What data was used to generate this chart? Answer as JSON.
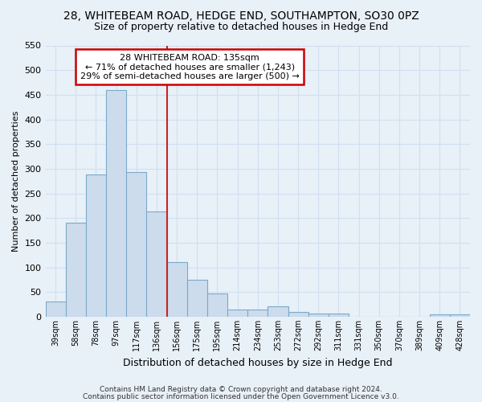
{
  "title1": "28, WHITEBEAM ROAD, HEDGE END, SOUTHAMPTON, SO30 0PZ",
  "title2": "Size of property relative to detached houses in Hedge End",
  "xlabel": "Distribution of detached houses by size in Hedge End",
  "ylabel": "Number of detached properties",
  "categories": [
    "39sqm",
    "58sqm",
    "78sqm",
    "97sqm",
    "117sqm",
    "136sqm",
    "156sqm",
    "175sqm",
    "195sqm",
    "214sqm",
    "234sqm",
    "253sqm",
    "272sqm",
    "292sqm",
    "311sqm",
    "331sqm",
    "350sqm",
    "370sqm",
    "389sqm",
    "409sqm",
    "428sqm"
  ],
  "values": [
    30,
    190,
    288,
    460,
    293,
    213,
    110,
    74,
    47,
    14,
    14,
    21,
    10,
    6,
    6,
    0,
    0,
    0,
    0,
    5,
    4
  ],
  "bar_color": "#ccdcec",
  "bar_edge_color": "#7aaaca",
  "highlight_index": 5,
  "highlight_line_color": "#cc2222",
  "ylim": [
    0,
    550
  ],
  "yticks": [
    0,
    50,
    100,
    150,
    200,
    250,
    300,
    350,
    400,
    450,
    500,
    550
  ],
  "annotation_text": "28 WHITEBEAM ROAD: 135sqm\n← 71% of detached houses are smaller (1,243)\n29% of semi-detached houses are larger (500) →",
  "annotation_box_color": "#ffffff",
  "annotation_box_edge_color": "#cc0000",
  "footer1": "Contains HM Land Registry data © Crown copyright and database right 2024.",
  "footer2": "Contains public sector information licensed under the Open Government Licence v3.0.",
  "background_color": "#e8f0f8",
  "grid_color": "#d0dff0",
  "title1_fontsize": 10,
  "title2_fontsize": 9
}
